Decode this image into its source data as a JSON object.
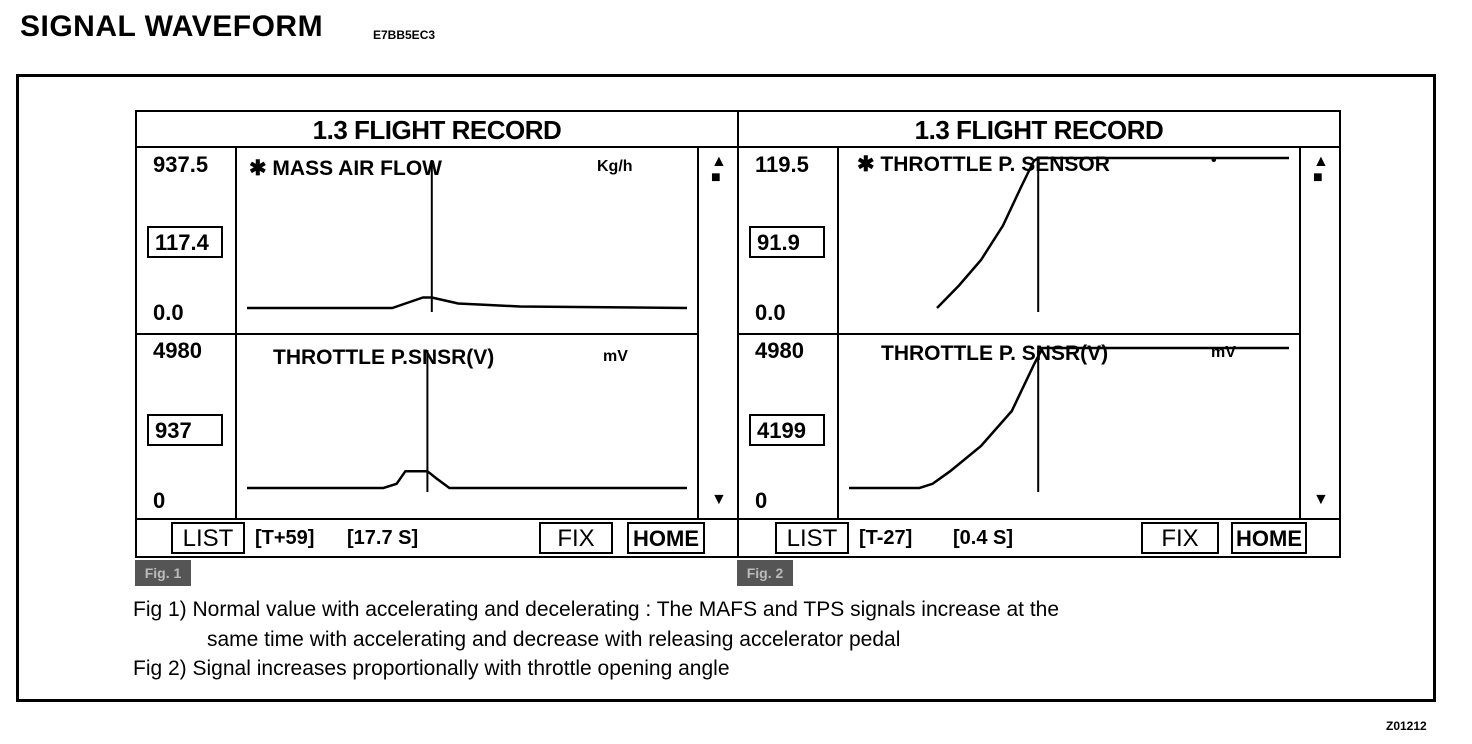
{
  "header": {
    "title": "SIGNAL  WAVEFORM",
    "code": "E7BB5EC3"
  },
  "figure_id": "Z01212",
  "icons": {
    "scroll_up": "up-triangle-icon",
    "scroll_stop": "square-stop-icon",
    "scroll_down": "down-triangle-icon"
  },
  "panels": [
    {
      "title": "1.3 FLIGHT RECORD",
      "top_graph": {
        "label": "✱ MASS AIR FLOW",
        "unit": "Kg/h",
        "max": "937.5",
        "value": "117.4",
        "min": "0.0",
        "trace": [
          [
            0,
            1.0
          ],
          [
            33,
            1.0
          ],
          [
            37,
            0.96
          ],
          [
            40,
            0.93
          ],
          [
            42,
            0.93
          ],
          [
            45,
            0.95
          ],
          [
            48,
            0.97
          ],
          [
            55,
            0.98
          ],
          [
            62,
            0.99
          ],
          [
            100,
            1.0
          ]
        ],
        "cursor": 42
      },
      "bottom_graph": {
        "label": "THROTTLE P.SNSR(V)",
        "unit": "mV",
        "max": "4980",
        "value": "937",
        "min": "0",
        "trace": [
          [
            0,
            1.0
          ],
          [
            31,
            1.0
          ],
          [
            34,
            0.97
          ],
          [
            36,
            0.88
          ],
          [
            38,
            0.88
          ],
          [
            41,
            0.88
          ],
          [
            43,
            0.93
          ],
          [
            46,
            1.0
          ],
          [
            100,
            1.0
          ]
        ],
        "cursor": 41
      },
      "bottom_bar": {
        "list": "LIST",
        "time": "[T+59]",
        "seconds": "[17.7  S]",
        "fix": "FIX",
        "home": "HOME"
      },
      "fig_tag": "Fig. 1"
    },
    {
      "title": "1.3 FLIGHT RECORD",
      "top_graph": {
        "label": "✱ THROTTLE P. SENSOR",
        "unit": "•",
        "max": "119.5",
        "value": "91.9",
        "min": "0.0",
        "trace": [
          [
            20,
            1.0
          ],
          [
            25,
            0.85
          ],
          [
            30,
            0.68
          ],
          [
            35,
            0.45
          ],
          [
            39,
            0.2
          ],
          [
            42,
            0.02
          ],
          [
            43,
            0.0
          ],
          [
            100,
            0.0
          ]
        ],
        "cursor": 43
      },
      "bottom_graph": {
        "label": "THROTTLE P. SNSR(V)",
        "unit": "mV",
        "max": "4980",
        "value": "4199",
        "min": "0",
        "trace": [
          [
            0,
            1.0
          ],
          [
            16,
            1.0
          ],
          [
            19,
            0.97
          ],
          [
            23,
            0.88
          ],
          [
            30,
            0.7
          ],
          [
            37,
            0.45
          ],
          [
            42,
            0.12
          ],
          [
            44,
            0.0
          ],
          [
            100,
            0.0
          ]
        ],
        "cursor": 43
      },
      "bottom_bar": {
        "list": "LIST",
        "time": "[T-27]",
        "seconds": "[0.4 S]",
        "fix": "FIX",
        "home": "HOME"
      },
      "fig_tag": "Fig. 2"
    }
  ],
  "captions": {
    "fig1_line1": "Fig 1) Normal value with accelerating and decelerating : The MAFS and TPS signals increase at the",
    "fig1_line2": "same time with accelerating and decrease with releasing accelerator pedal",
    "fig2_line1": "Fig 2) Signal increases proportionally with throttle opening angle"
  }
}
